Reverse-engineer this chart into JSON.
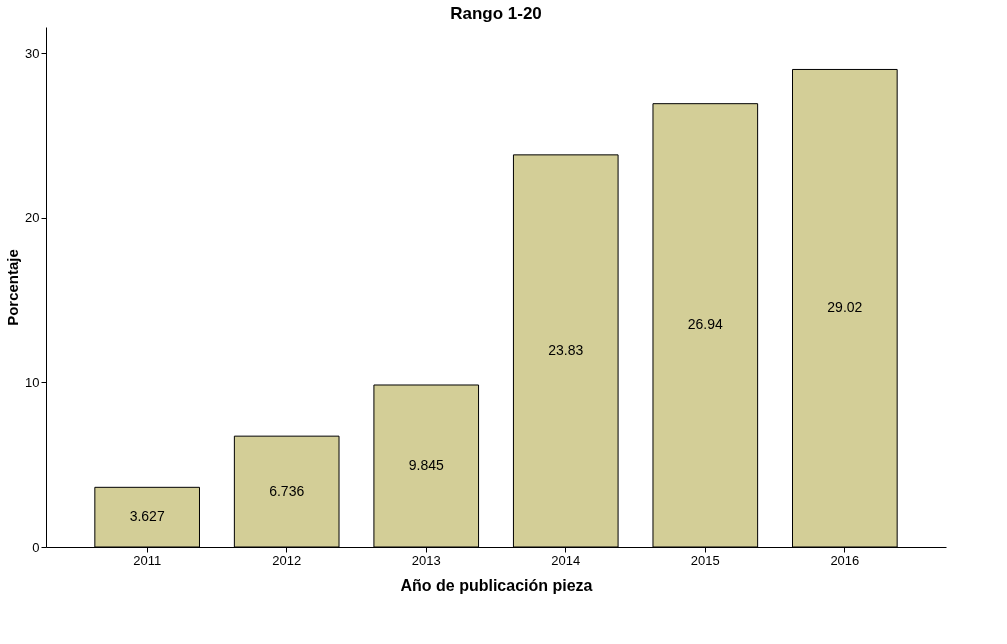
{
  "chart_data": {
    "type": "bar",
    "title": "Rango 1-20",
    "xlabel": "Año de publicación pieza",
    "ylabel": "Porcentaje",
    "categories": [
      "2011",
      "2012",
      "2013",
      "2014",
      "2015",
      "2016"
    ],
    "values": [
      3.627,
      6.736,
      9.845,
      23.83,
      26.94,
      29.02
    ],
    "color": "#d3ce97",
    "ylim": [
      0,
      31.6
    ],
    "yticks": [
      0,
      10,
      20,
      30
    ],
    "grid": false,
    "data_labels": true
  }
}
